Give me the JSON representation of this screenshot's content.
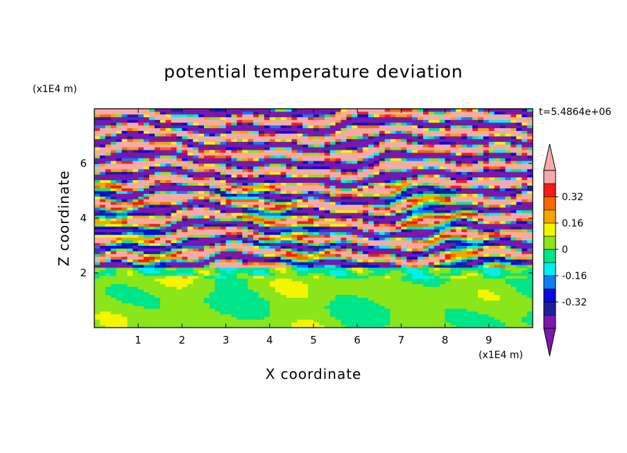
{
  "chart_data": {
    "type": "heatmap",
    "title": "potential temperature deviation",
    "xlabel": "X coordinate",
    "ylabel": "Z coordinate",
    "x_unit": "(x1E4 m)",
    "y_unit": "(x1E4 m)",
    "time_label": "t=5.4864e+06",
    "xlim": [
      0,
      10
    ],
    "ylim": [
      0,
      8
    ],
    "xticks": [
      "1",
      "2",
      "3",
      "4",
      "5",
      "6",
      "7",
      "8",
      "9"
    ],
    "yticks": [
      "2",
      "4",
      "6"
    ],
    "colorbar": {
      "levels": [
        -0.48,
        -0.4,
        -0.32,
        -0.24,
        -0.16,
        -0.08,
        0,
        0.08,
        0.16,
        0.24,
        0.32,
        0.4,
        0.48
      ],
      "colors": [
        "#7b17ad",
        "#1f1f9e",
        "#0a0adc",
        "#0a7ff5",
        "#00f0f0",
        "#00e58a",
        "#8ae51a",
        "#f5f500",
        "#f5a500",
        "#f56a00",
        "#f51a1a",
        "#f5aaaa"
      ],
      "underflow_color": "#7b17ad",
      "overflow_color": "#f5aaaa",
      "tick_labels": [
        "0.32",
        "0.16",
        "0",
        "-0.16",
        "-0.32"
      ],
      "tick_values": [
        0.32,
        0.16,
        0,
        -0.16,
        -0.32
      ]
    },
    "grid": false
  }
}
